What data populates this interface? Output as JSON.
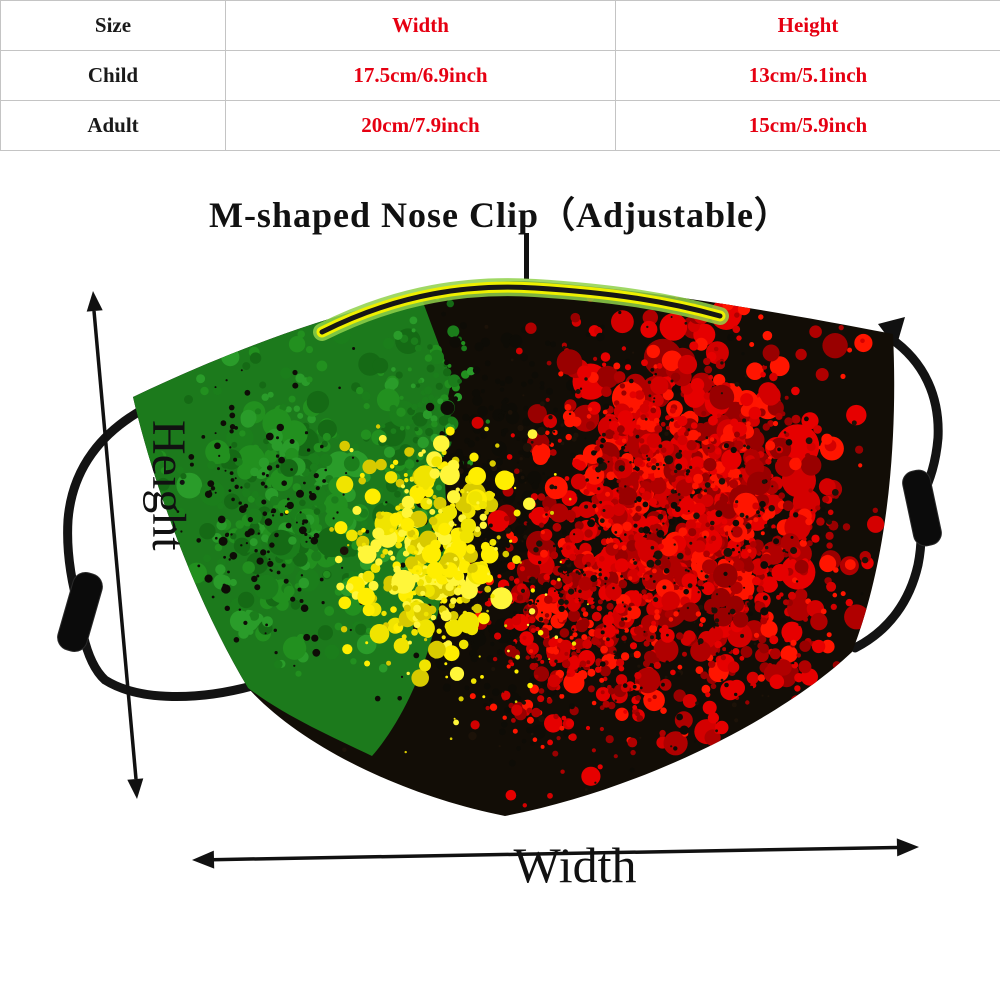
{
  "size_table": {
    "headers": [
      "Size",
      "Width",
      "Height"
    ],
    "rows": [
      [
        "Child",
        "17.5cm/6.9inch",
        "13cm/5.1inch"
      ],
      [
        "Adult",
        "20cm/7.9inch",
        "15cm/5.9inch"
      ]
    ]
  },
  "labels": {
    "nose_clip": "M-shaped Nose Clip（Adjustable）",
    "height": "Height",
    "width": "Width"
  },
  "colors": {
    "accent_red": "#e60012",
    "text_dark": "#1a1a1a",
    "table_border": "#c4c4c4",
    "mask_base_black": "#120d06",
    "mask_greens": [
      "#1b7e1b",
      "#22901f",
      "#156a15",
      "#2a9c2a"
    ],
    "mask_reds": [
      "#e60000",
      "#d40000",
      "#ff1500",
      "#b00000",
      "#990000"
    ],
    "mask_yellows": [
      "#f0e400",
      "#ffee00",
      "#d8ca00",
      "#fff63a"
    ],
    "speck_black": "#0e0c06",
    "nose_clip_glow": "#8fd14a",
    "nose_clip_outline": "#eef000",
    "nose_clip_core": "#161616",
    "strap_black": "#131313"
  }
}
